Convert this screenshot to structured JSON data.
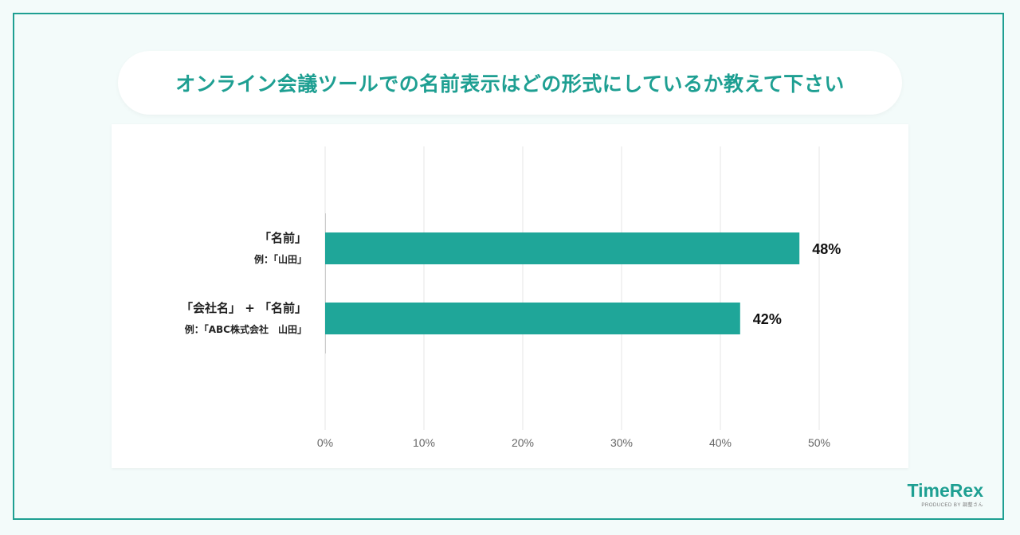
{
  "title": "オンライン会議ツールでの名前表示はどの形式にしているか教えて下さい",
  "logo": {
    "name": "TimeRex",
    "tagline": "PRODUCED BY 調整さん"
  },
  "chart_data": {
    "type": "bar",
    "orientation": "horizontal",
    "categories": [
      {
        "label": "「名前」",
        "example": "例：「山田」"
      },
      {
        "label": "「会社名」 + 「名前」",
        "example": "例：「ABC株式会社　山田」"
      }
    ],
    "values": [
      48,
      42
    ],
    "value_labels": [
      "48%",
      "42%"
    ],
    "xlim": [
      0,
      50
    ],
    "xticks": [
      "0%",
      "10%",
      "20%",
      "30%",
      "40%",
      "50%"
    ],
    "bar_color": "#1fa699",
    "grid": true
  }
}
